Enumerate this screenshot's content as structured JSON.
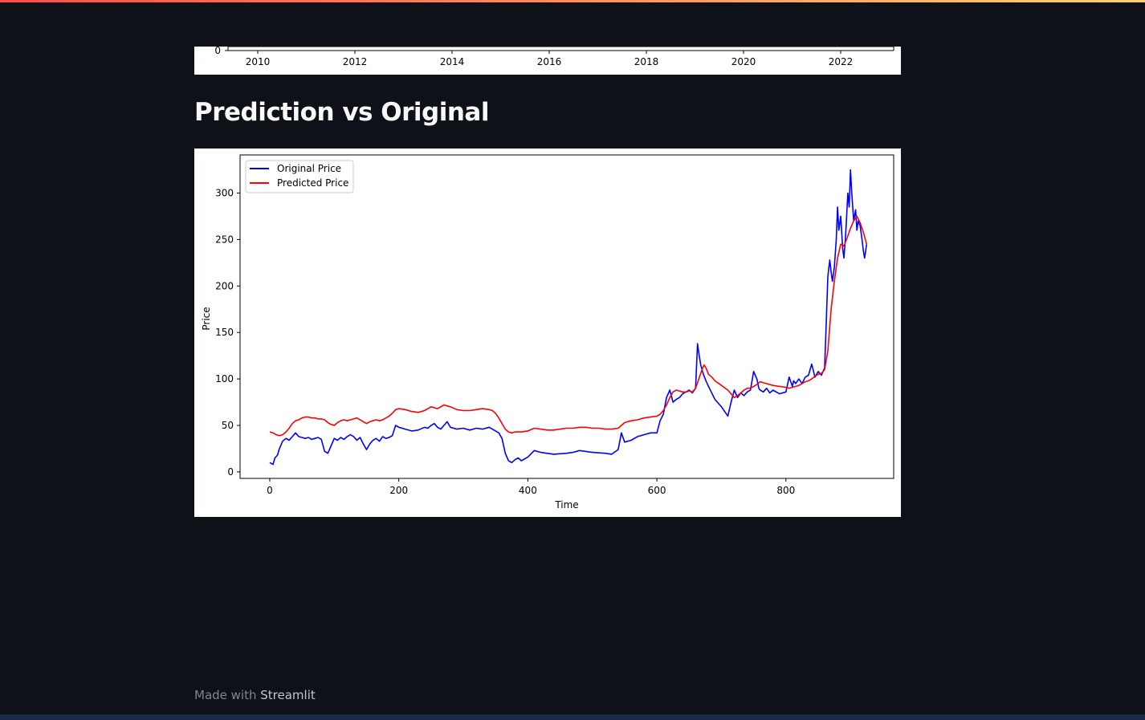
{
  "top_accent_colors": [
    "#ff4b4b",
    "#ffd16a"
  ],
  "previous_chart": {
    "y_tick_visible": "0",
    "x_ticks": [
      "2010",
      "2012",
      "2014",
      "2016",
      "2018",
      "2020",
      "2022"
    ]
  },
  "section": {
    "title": "Prediction vs Original"
  },
  "chart_data": {
    "type": "line",
    "xlabel": "Time",
    "ylabel": "Price",
    "xlim": [
      -46,
      967
    ],
    "ylim": [
      -7,
      341
    ],
    "x_ticks": [
      0,
      200,
      400,
      600,
      800
    ],
    "y_ticks": [
      0,
      50,
      100,
      150,
      200,
      250,
      300
    ],
    "legend_position": "top-left",
    "grid": false,
    "series": [
      {
        "name": "Original Price",
        "color": "#0000ff",
        "x": [
          0,
          5,
          8,
          12,
          15,
          20,
          25,
          30,
          35,
          40,
          45,
          50,
          55,
          60,
          65,
          70,
          75,
          80,
          85,
          90,
          95,
          100,
          105,
          110,
          115,
          120,
          125,
          130,
          135,
          140,
          145,
          150,
          155,
          160,
          165,
          170,
          175,
          180,
          185,
          190,
          195,
          200,
          210,
          220,
          230,
          240,
          245,
          250,
          255,
          260,
          265,
          270,
          275,
          280,
          290,
          300,
          310,
          320,
          330,
          340,
          345,
          350,
          355,
          360,
          365,
          370,
          375,
          380,
          385,
          390,
          400,
          410,
          420,
          440,
          460,
          470,
          480,
          490,
          500,
          520,
          530,
          536,
          540,
          545,
          550,
          560,
          570,
          580,
          590,
          600,
          605,
          610,
          615,
          620,
          625,
          630,
          635,
          640,
          645,
          650,
          655,
          660,
          663,
          665,
          668,
          672,
          676,
          680,
          690,
          700,
          710,
          715,
          720,
          725,
          730,
          735,
          740,
          745,
          750,
          755,
          758,
          760,
          765,
          770,
          775,
          780,
          790,
          800,
          805,
          810,
          812,
          815,
          820,
          825,
          830,
          835,
          840,
          845,
          850,
          855,
          860,
          862,
          865,
          868,
          870,
          872,
          875,
          878,
          880,
          882,
          885,
          888,
          890,
          893,
          896,
          898,
          900,
          902,
          905,
          908,
          910,
          912,
          915,
          918,
          920,
          922,
          925
        ],
        "y": [
          10,
          8,
          15,
          18,
          25,
          33,
          36,
          34,
          38,
          42,
          38,
          37,
          36,
          37,
          35,
          36,
          37,
          35,
          22,
          20,
          28,
          36,
          34,
          37,
          35,
          38,
          40,
          38,
          34,
          37,
          30,
          24,
          30,
          34,
          36,
          33,
          38,
          36,
          37,
          39,
          50,
          48,
          46,
          44,
          45,
          48,
          47,
          50,
          52,
          48,
          46,
          50,
          54,
          48,
          46,
          47,
          45,
          47,
          46,
          48,
          46,
          44,
          42,
          36,
          20,
          12,
          10,
          13,
          15,
          12,
          16,
          23,
          21,
          19,
          20,
          21,
          23,
          22,
          21,
          20,
          19,
          22,
          24,
          42,
          32,
          34,
          38,
          40,
          42,
          42,
          55,
          62,
          80,
          88,
          75,
          78,
          80,
          84,
          86,
          88,
          85,
          90,
          138,
          128,
          115,
          105,
          98,
          92,
          78,
          70,
          60,
          75,
          88,
          80,
          85,
          82,
          86,
          88,
          108,
          100,
          90,
          88,
          86,
          90,
          85,
          88,
          84,
          86,
          102,
          92,
          98,
          95,
          100,
          95,
          102,
          104,
          116,
          102,
          108,
          104,
          112,
          150,
          210,
          228,
          215,
          205,
          220,
          250,
          285,
          260,
          275,
          240,
          230,
          260,
          300,
          285,
          325,
          300,
          270,
          282,
          260,
          270,
          265,
          250,
          238,
          230,
          245
        ]
      },
      {
        "name": "Predicted Price",
        "color": "#ff0000",
        "x": [
          0,
          5,
          10,
          15,
          20,
          25,
          30,
          35,
          40,
          45,
          50,
          55,
          60,
          65,
          70,
          75,
          80,
          85,
          90,
          95,
          100,
          105,
          110,
          115,
          120,
          125,
          130,
          135,
          140,
          145,
          150,
          155,
          160,
          165,
          170,
          175,
          180,
          185,
          190,
          195,
          200,
          210,
          220,
          230,
          240,
          250,
          260,
          270,
          280,
          290,
          300,
          310,
          320,
          330,
          340,
          345,
          350,
          355,
          360,
          365,
          370,
          375,
          380,
          390,
          400,
          410,
          420,
          430,
          440,
          450,
          460,
          470,
          480,
          490,
          500,
          510,
          520,
          530,
          540,
          545,
          550,
          560,
          570,
          580,
          590,
          600,
          605,
          610,
          615,
          620,
          625,
          630,
          635,
          640,
          645,
          650,
          655,
          660,
          665,
          670,
          673,
          676,
          680,
          685,
          690,
          700,
          710,
          715,
          720,
          725,
          730,
          735,
          740,
          745,
          750,
          755,
          760,
          770,
          780,
          790,
          800,
          805,
          810,
          815,
          820,
          825,
          830,
          835,
          840,
          845,
          850,
          855,
          860,
          865,
          870,
          875,
          880,
          885,
          890,
          895,
          900,
          905,
          910,
          915,
          920,
          925
        ],
        "y": [
          43,
          42,
          40,
          39,
          40,
          43,
          47,
          52,
          55,
          56,
          58,
          59,
          59,
          58,
          58,
          57,
          57,
          56,
          53,
          51,
          50,
          53,
          55,
          56,
          55,
          56,
          57,
          58,
          56,
          54,
          52,
          54,
          55,
          56,
          55,
          56,
          58,
          60,
          63,
          67,
          68,
          67,
          65,
          64,
          66,
          70,
          68,
          72,
          70,
          67,
          66,
          66,
          67,
          68,
          67,
          66,
          63,
          58,
          52,
          46,
          43,
          42,
          43,
          43,
          44,
          47,
          46,
          45,
          45,
          46,
          47,
          47,
          48,
          48,
          47,
          47,
          46,
          46,
          47,
          50,
          53,
          55,
          56,
          58,
          59,
          60,
          62,
          66,
          72,
          80,
          86,
          88,
          87,
          86,
          86,
          87,
          86,
          90,
          100,
          110,
          115,
          112,
          105,
          102,
          98,
          93,
          88,
          84,
          80,
          82,
          85,
          88,
          90,
          90,
          92,
          94,
          97,
          95,
          93,
          92,
          91,
          90,
          91,
          92,
          93,
          95,
          97,
          98,
          100,
          103,
          105,
          106,
          110,
          130,
          175,
          205,
          230,
          245,
          243,
          252,
          262,
          270,
          275,
          268,
          258,
          245
        ]
      }
    ]
  },
  "footer": {
    "made_with": "Made with ",
    "brand": "Streamlit"
  }
}
